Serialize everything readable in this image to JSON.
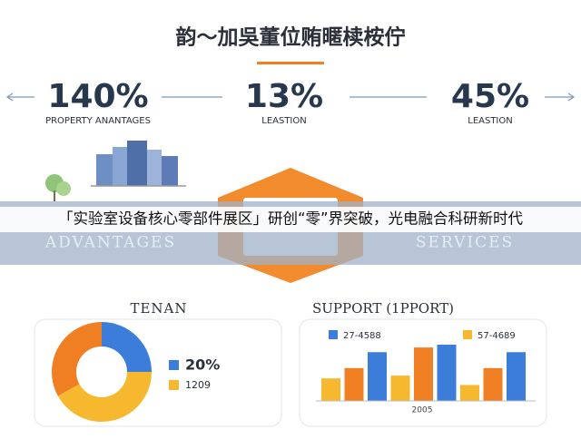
{
  "title": "韵～加吳董位贿暱椟桉佇",
  "stats": [
    {
      "value": "140%",
      "label": "PROPERTY ANANTAGES"
    },
    {
      "value": "13%",
      "label": "LEASTION"
    },
    {
      "value": "45%",
      "label": "LEASTION"
    }
  ],
  "banner": "「实验室设备核心零部件展区」研创“零”界突破，光电融合科研新时代",
  "faded": {
    "left": "ADVANTAGES",
    "right": "SERVICES"
  },
  "donut": {
    "title": "TENAN",
    "segments": [
      {
        "value": 25,
        "color": "#3b7dd8"
      },
      {
        "value": 42,
        "color": "#f5b82e"
      },
      {
        "value": 33,
        "color": "#f07f23"
      }
    ],
    "legend": [
      {
        "text": "20%",
        "color": "#3b7dd8"
      },
      {
        "text": "1209",
        "color": "#f5b82e"
      }
    ]
  },
  "bars": {
    "title": "SUPPORT (1PPORT)",
    "legend": [
      {
        "text": "27-4588",
        "color": "#3b7dd8"
      },
      {
        "text": "57-4689",
        "color": "#f5b82e"
      }
    ],
    "values": [
      24,
      35,
      52,
      27,
      57,
      60,
      17,
      35,
      52
    ],
    "colors": [
      "#f5b82e",
      "#f07f23",
      "#3b7dd8",
      "#f5b82e",
      "#f07f23",
      "#3b7dd8",
      "#f5b82e",
      "#f07f23",
      "#3b7dd8"
    ],
    "xlabel": "2005"
  }
}
